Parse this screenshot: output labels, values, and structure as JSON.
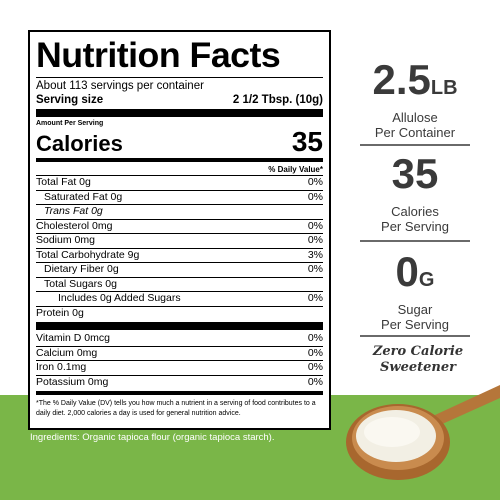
{
  "label": {
    "title": "Nutrition Facts",
    "servings": "About 113 servings per container",
    "serving_size_label": "Serving size",
    "serving_size_value": "2 1/2 Tbsp. (10g)",
    "amount_per_serving": "Amount Per Serving",
    "calories_label": "Calories",
    "calories_value": "35",
    "dv_header": "% Daily Value*",
    "rows": [
      {
        "label": "Total Fat 0g",
        "dv": "0%"
      },
      {
        "label": "Saturated Fat 0g",
        "dv": "0%"
      },
      {
        "label": "Trans Fat 0g",
        "dv": ""
      },
      {
        "label": "Cholesterol 0mg",
        "dv": "0%"
      },
      {
        "label": "Sodium 0mg",
        "dv": "0%"
      },
      {
        "label": "Total Carbohydrate 9g",
        "dv": "3%"
      },
      {
        "label": "Dietary Fiber 0g",
        "dv": "0%"
      },
      {
        "label": "Total Sugars 0g",
        "dv": ""
      },
      {
        "label": "Includes 0g Added Sugars",
        "dv": "0%"
      },
      {
        "label": "Protein 0g",
        "dv": ""
      }
    ],
    "vitamins": [
      {
        "label": "Vitamin D 0mcg",
        "dv": "0%"
      },
      {
        "label": "Calcium 0mg",
        "dv": "0%"
      },
      {
        "label": "Iron 0.1mg",
        "dv": "0%"
      },
      {
        "label": "Potassium 0mg",
        "dv": "0%"
      }
    ],
    "footnote": "*The % Daily Value (DV) tells you how much a nutrient in a serving of food contributes to a daily diet. 2,000 calories a day is used for general nutrition advice."
  },
  "ingredients": "Ingredients: Organic tapioca flour (organic tapioca starch).",
  "stats": [
    {
      "big": "2.5",
      "unit": "LB",
      "line1": "Allulose",
      "line2": "Per Container"
    },
    {
      "big": "35",
      "unit": "",
      "line1": "Calories",
      "line2": "Per Serving"
    },
    {
      "big": "0",
      "unit": "G",
      "line1": "Sugar",
      "line2": "Per Serving"
    }
  ],
  "tagline_line1": "Zero Calorie",
  "tagline_line2": "Sweetener",
  "colors": {
    "green": "#7ab648",
    "text_gray": "#3a3a3a",
    "spoon": "#b5763a",
    "powder": "#f2efe4"
  }
}
